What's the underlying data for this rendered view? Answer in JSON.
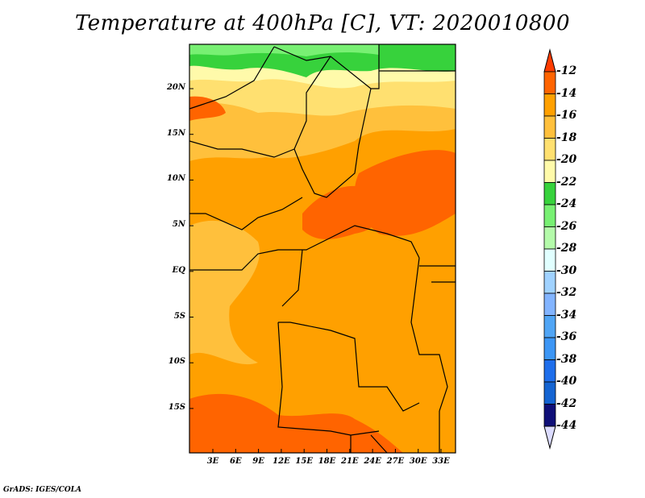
{
  "title": "Temperature at 400hPa [C], VT: 2020010800",
  "credit": "GrADS: IGES/COLA",
  "lat_labels": [
    "20N",
    "15N",
    "10N",
    "5N",
    "EQ",
    "5S",
    "10S",
    "15S"
  ],
  "lon_labels": [
    "3E",
    "6E",
    "9E",
    "12E",
    "15E",
    "18E",
    "21E",
    "24E",
    "27E",
    "30E",
    "33E"
  ],
  "colorbar": {
    "labels": [
      "-12",
      "-14",
      "-16",
      "-18",
      "-20",
      "-22",
      "-24",
      "-26",
      "-28",
      "-30",
      "-32",
      "-34",
      "-36",
      "-38",
      "-40",
      "-42",
      "-44"
    ],
    "above_color": "#ff3c00",
    "below_color": "#dcdcff",
    "colors": [
      "#ff6400",
      "#ffa000",
      "#ffc03c",
      "#ffe070",
      "#fffaaa",
      "#37d23c",
      "#78f073",
      "#b4faaa",
      "#e1ffff",
      "#a0d2ff",
      "#82b4ff",
      "#50a5f5",
      "#3c96f5",
      "#1e6eeb",
      "#1464d2",
      "#0f0f78"
    ]
  }
}
